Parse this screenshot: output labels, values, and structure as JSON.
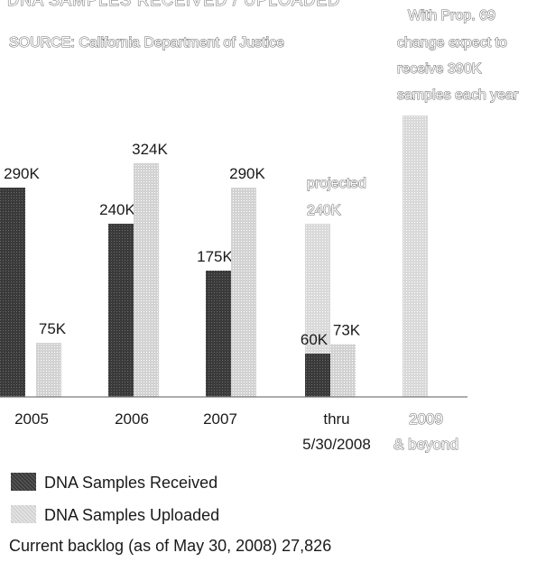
{
  "header": {
    "title": "DNA SAMPLES RECEIVED / UPLOADED",
    "source": "SOURCE: California Department of Justice",
    "note_lines": [
      "With Prop. 69",
      "change expect to",
      "receive 390K",
      "samples each year"
    ]
  },
  "chart_data": {
    "type": "bar",
    "categories": [
      {
        "line1": "2005",
        "line2": ""
      },
      {
        "line1": "2006",
        "line2": ""
      },
      {
        "line1": "2007",
        "line2": ""
      },
      {
        "line1": "thru",
        "line2": "5/30/2008"
      },
      {
        "line1": "2009",
        "line2": "& beyond"
      }
    ],
    "series": [
      {
        "name": "DNA Samples Received",
        "values": [
          290,
          240,
          175,
          60,
          null
        ],
        "labels": [
          "290K",
          "240K",
          "175K",
          "60K",
          ""
        ]
      },
      {
        "name": "DNA Samples Uploaded",
        "values": [
          75,
          324,
          290,
          73,
          null
        ],
        "labels": [
          "75K",
          "324K",
          "290K",
          "73K",
          ""
        ]
      }
    ],
    "projected": [
      {
        "category_index": 3,
        "value": 240,
        "label_lines": [
          "projected",
          "240K"
        ]
      },
      {
        "category_index": 4,
        "value": 390,
        "label_lines": []
      }
    ],
    "units": "thousands of samples",
    "ylim": [
      0,
      400
    ],
    "grid": false,
    "colors": {
      "received": "#3a3a3a",
      "uploaded": "#d2d2d2",
      "projected": "#d9d9d9"
    }
  },
  "legend": {
    "received_label": "DNA Samples Received",
    "uploaded_label": "DNA Samples Uploaded"
  },
  "footer": {
    "backlog": "Current backlog (as of May 30, 2008) 27,826"
  }
}
